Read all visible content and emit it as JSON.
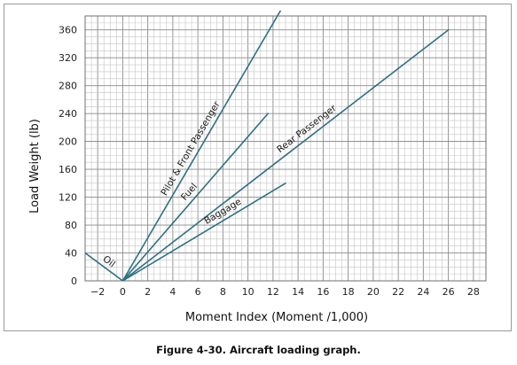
{
  "caption": "Figure 4-30. Aircraft loading graph.",
  "chart_data": {
    "type": "line",
    "title": "",
    "xlabel": "Moment Index (Moment /1,000)",
    "ylabel": "Load Weight (lb)",
    "xlim": [
      -3,
      29
    ],
    "ylim": [
      0,
      380
    ],
    "x_ticks": [
      -2,
      0,
      2,
      4,
      6,
      8,
      10,
      12,
      14,
      16,
      18,
      20,
      22,
      24,
      26,
      28
    ],
    "x_tick_labels": [
      "−2",
      "0",
      "2",
      "4",
      "6",
      "8",
      "10",
      "12",
      "14",
      "16",
      "18",
      "20",
      "22",
      "24",
      "26",
      "28"
    ],
    "y_ticks": [
      0,
      40,
      80,
      120,
      160,
      200,
      240,
      280,
      320,
      360
    ],
    "y_tick_labels": [
      "0",
      "40",
      "80",
      "120",
      "160",
      "200",
      "240",
      "280",
      "320",
      "360"
    ],
    "grid": true,
    "line_color": "#2f6f86",
    "series": [
      {
        "name": "Oil",
        "x": [
          -3,
          0
        ],
        "y": [
          40,
          0
        ]
      },
      {
        "name": "Pilot & Front Passenger",
        "x": [
          0,
          13
        ],
        "y": [
          0,
          400
        ]
      },
      {
        "name": "Fuel",
        "x": [
          0,
          11.6
        ],
        "y": [
          0,
          240
        ]
      },
      {
        "name": "Rear Passenger",
        "x": [
          0,
          26
        ],
        "y": [
          0,
          360
        ]
      },
      {
        "name": "Baggage",
        "x": [
          0,
          13
        ],
        "y": [
          0,
          140
        ]
      }
    ]
  }
}
